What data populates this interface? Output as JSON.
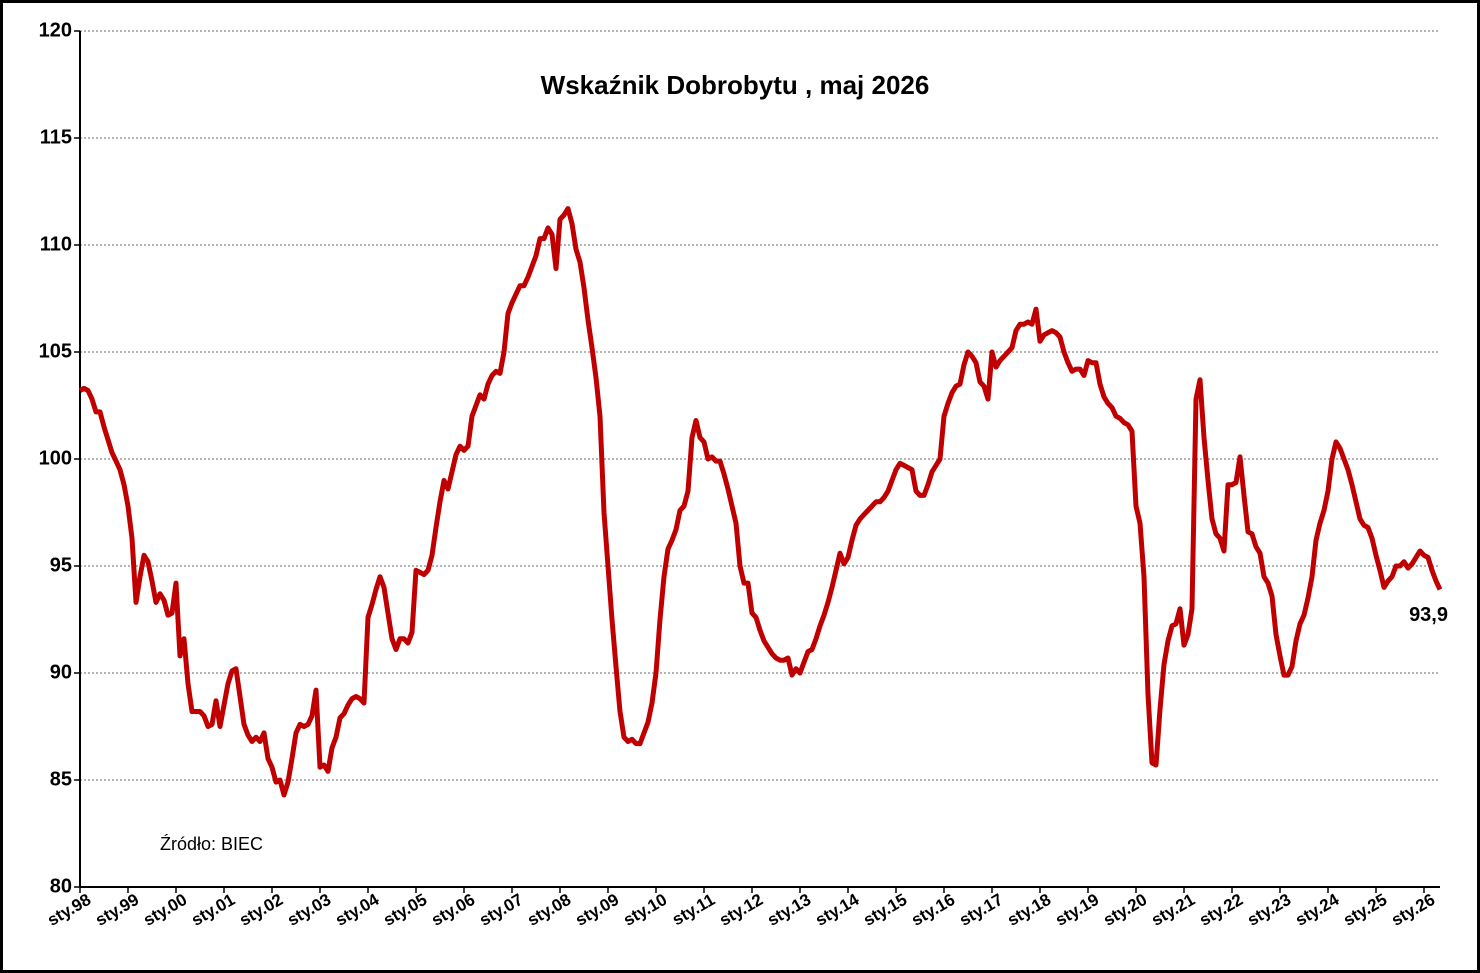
{
  "chart_data": {
    "type": "line",
    "title": "Wskaźnik Dobrobytu , maj 2026",
    "annotation": "Źródło: BIEC",
    "categories": [
      "sty.98",
      null,
      null,
      null,
      null,
      null,
      null,
      null,
      null,
      null,
      null,
      null,
      "sty.99",
      null,
      null,
      null,
      null,
      null,
      null,
      null,
      null,
      null,
      null,
      null,
      "sty.00",
      null,
      null,
      null,
      null,
      null,
      null,
      null,
      null,
      null,
      null,
      null,
      "sty.01",
      null,
      null,
      null,
      null,
      null,
      null,
      null,
      null,
      null,
      null,
      null,
      "sty.02",
      null,
      null,
      null,
      null,
      null,
      null,
      null,
      null,
      null,
      null,
      null,
      "sty.03",
      null,
      null,
      null,
      null,
      null,
      null,
      null,
      null,
      null,
      null,
      null,
      "sty.04",
      null,
      null,
      null,
      null,
      null,
      null,
      null,
      null,
      null,
      null,
      null,
      "sty.05",
      null,
      null,
      null,
      null,
      null,
      null,
      null,
      null,
      null,
      null,
      null,
      "sty.06",
      null,
      null,
      null,
      null,
      null,
      null,
      null,
      null,
      null,
      null,
      null,
      "sty.07",
      null,
      null,
      null,
      null,
      null,
      null,
      null,
      null,
      null,
      null,
      null,
      "sty.08",
      null,
      null,
      null,
      null,
      null,
      null,
      null,
      null,
      null,
      null,
      null,
      "sty.09",
      null,
      null,
      null,
      null,
      null,
      null,
      null,
      null,
      null,
      null,
      null,
      "sty.10",
      null,
      null,
      null,
      null,
      null,
      null,
      null,
      null,
      null,
      null,
      null,
      "sty.11",
      null,
      null,
      null,
      null,
      null,
      null,
      null,
      null,
      null,
      null,
      null,
      "sty.12",
      null,
      null,
      null,
      null,
      null,
      null,
      null,
      null,
      null,
      null,
      null,
      "sty.13",
      null,
      null,
      null,
      null,
      null,
      null,
      null,
      null,
      null,
      null,
      null,
      "sty.14",
      null,
      null,
      null,
      null,
      null,
      null,
      null,
      null,
      null,
      null,
      null,
      "sty.15",
      null,
      null,
      null,
      null,
      null,
      null,
      null,
      null,
      null,
      null,
      null,
      "sty.16",
      null,
      null,
      null,
      null,
      null,
      null,
      null,
      null,
      null,
      null,
      null,
      "sty.17",
      null,
      null,
      null,
      null,
      null,
      null,
      null,
      null,
      null,
      null,
      null,
      "sty.18",
      null,
      null,
      null,
      null,
      null,
      null,
      null,
      null,
      null,
      null,
      null,
      "sty.19",
      null,
      null,
      null,
      null,
      null,
      null,
      null,
      null,
      null,
      null,
      null,
      "sty.20",
      null,
      null,
      null,
      null,
      null,
      null,
      null,
      null,
      null,
      null,
      null,
      "sty.21",
      null,
      null,
      null,
      null,
      null,
      null,
      null,
      null,
      null,
      null,
      null,
      "sty.22",
      null,
      null,
      null,
      null,
      null,
      null,
      null,
      null,
      null,
      null,
      null,
      "sty.23",
      null,
      null,
      null,
      null,
      null,
      null,
      null,
      null,
      null,
      null,
      null,
      "sty.24",
      null,
      null,
      null,
      null,
      null,
      null,
      null,
      null,
      null,
      null,
      null,
      "sty.25",
      null,
      null,
      null,
      null,
      null,
      null,
      null,
      null,
      null,
      null,
      null,
      "sty.26",
      null,
      null,
      null,
      null
    ],
    "series": [
      {
        "name": "Wskaźnik Dobrobytu",
        "color": "#c00000",
        "values": [
          103.2,
          103.3,
          103.2,
          102.8,
          102.2,
          102.2,
          101.5,
          100.9,
          100.3,
          99.9,
          99.5,
          98.8,
          97.8,
          96.3,
          93.3,
          94.5,
          95.5,
          95.2,
          94.3,
          93.3,
          93.7,
          93.4,
          92.7,
          92.8,
          94.2,
          90.8,
          91.6,
          89.5,
          88.2,
          88.2,
          88.2,
          88.0,
          87.5,
          87.6,
          88.7,
          87.5,
          88.5,
          89.5,
          90.1,
          90.2,
          88.9,
          87.6,
          87.1,
          86.8,
          87.0,
          86.8,
          87.2,
          86.0,
          85.6,
          84.9,
          85.0,
          84.3,
          84.9,
          86.0,
          87.2,
          87.6,
          87.5,
          87.6,
          88.0,
          89.2,
          85.6,
          85.7,
          85.4,
          86.5,
          87.0,
          87.9,
          88.1,
          88.5,
          88.8,
          88.9,
          88.8,
          88.6,
          92.6,
          93.2,
          93.9,
          94.5,
          94.0,
          92.8,
          91.6,
          91.1,
          91.6,
          91.6,
          91.4,
          91.9,
          94.8,
          94.7,
          94.6,
          94.8,
          95.5,
          96.8,
          98.0,
          99.0,
          98.6,
          99.4,
          100.2,
          100.6,
          100.4,
          100.6,
          102.0,
          102.5,
          103.0,
          102.8,
          103.5,
          103.9,
          104.1,
          104.0,
          105.0,
          106.8,
          107.3,
          107.7,
          108.1,
          108.1,
          108.5,
          109.0,
          109.5,
          110.3,
          110.3,
          110.8,
          110.5,
          108.9,
          111.2,
          111.4,
          111.7,
          111.0,
          109.8,
          109.2,
          108.0,
          106.5,
          105.2,
          103.8,
          102.0,
          97.5,
          95.0,
          92.5,
          90.3,
          88.2,
          87.0,
          86.8,
          86.9,
          86.7,
          86.7,
          87.2,
          87.7,
          88.6,
          90.0,
          92.5,
          94.5,
          95.8,
          96.2,
          96.7,
          97.6,
          97.8,
          98.5,
          101.0,
          101.8,
          101.0,
          100.8,
          100.0,
          100.1,
          99.9,
          99.9,
          99.3,
          98.6,
          97.8,
          97.0,
          95.0,
          94.2,
          94.2,
          92.8,
          92.6,
          92.0,
          91.5,
          91.2,
          90.9,
          90.7,
          90.6,
          90.6,
          90.7,
          89.9,
          90.2,
          90.0,
          90.5,
          91.0,
          91.1,
          91.6,
          92.2,
          92.7,
          93.3,
          94.0,
          94.8,
          95.6,
          95.1,
          95.4,
          96.2,
          96.9,
          97.2,
          97.4,
          97.6,
          97.8,
          98.0,
          98.0,
          98.2,
          98.5,
          99.0,
          99.5,
          99.8,
          99.7,
          99.6,
          99.5,
          98.5,
          98.3,
          98.3,
          98.8,
          99.4,
          99.7,
          100.0,
          102.0,
          102.6,
          103.1,
          103.4,
          103.5,
          104.4,
          105.0,
          104.8,
          104.5,
          103.6,
          103.4,
          102.8,
          105.0,
          104.3,
          104.6,
          104.8,
          105.0,
          105.2,
          106.0,
          106.3,
          106.3,
          106.4,
          106.3,
          107.0,
          105.5,
          105.8,
          105.9,
          106.0,
          105.9,
          105.7,
          105.0,
          104.5,
          104.1,
          104.2,
          104.2,
          103.9,
          104.6,
          104.5,
          104.5,
          103.5,
          102.9,
          102.6,
          102.4,
          102.0,
          101.9,
          101.7,
          101.6,
          101.3,
          97.8,
          97.0,
          94.5,
          89.0,
          85.8,
          85.7,
          88.3,
          90.4,
          91.5,
          92.2,
          92.3,
          93.0,
          91.3,
          91.8,
          93.0,
          102.8,
          103.7,
          101.0,
          99.0,
          97.2,
          96.5,
          96.3,
          95.7,
          98.8,
          98.8,
          98.9,
          100.1,
          98.3,
          96.6,
          96.5,
          95.9,
          95.6,
          94.5,
          94.2,
          93.6,
          91.8,
          90.8,
          89.9,
          89.9,
          90.3,
          91.5,
          92.3,
          92.7,
          93.5,
          94.5,
          96.2,
          97.0,
          97.6,
          98.5,
          100.0,
          100.8,
          100.5,
          100.0,
          99.5,
          98.8,
          98.0,
          97.2,
          96.9,
          96.8,
          96.3,
          95.5,
          94.8,
          94.0,
          94.3,
          94.5,
          95.0,
          95.0,
          95.2,
          94.9,
          95.1,
          95.4,
          95.7,
          95.5,
          95.4,
          94.8,
          94.3,
          93.9
        ],
        "value_labels": {
          "340": "93,9"
        }
      }
    ],
    "ylim": [
      80,
      120
    ],
    "yticks": [
      80,
      85,
      90,
      95,
      100,
      105,
      110,
      115,
      120
    ],
    "grid": true
  }
}
